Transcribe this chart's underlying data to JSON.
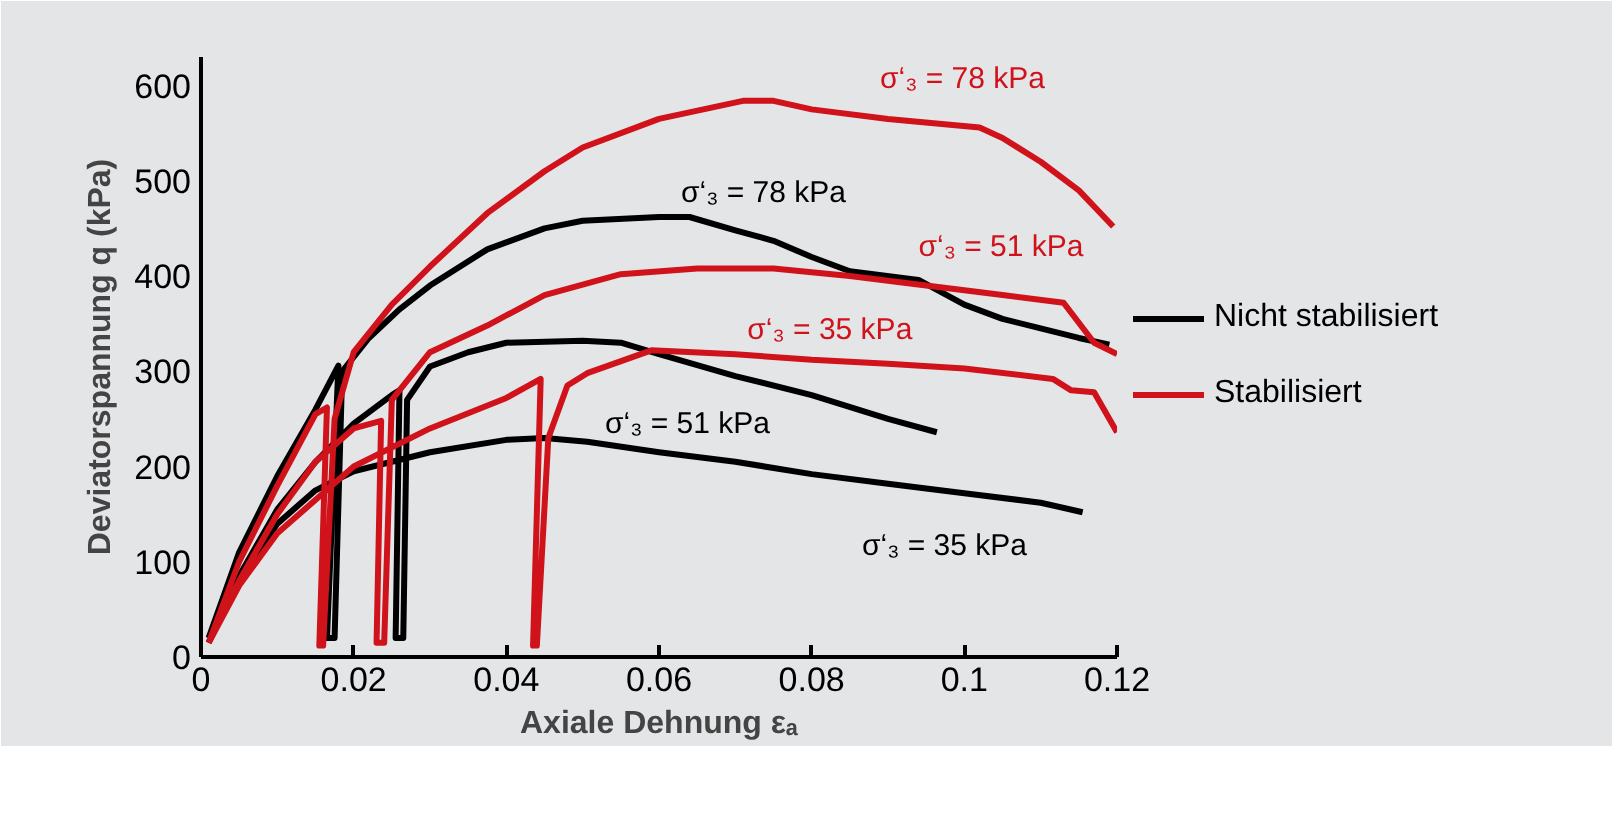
{
  "chart_data": {
    "type": "line",
    "xlabel": "Axiale Dehnung εₐ",
    "ylabel": "Deviatorspannung q (kPa)",
    "xlim": [
      0,
      0.12
    ],
    "ylim": [
      0,
      630
    ],
    "xticks": [
      0,
      0.02,
      0.04,
      0.06,
      0.08,
      0.1,
      0.12
    ],
    "yticks": [
      0,
      100,
      200,
      300,
      400,
      500,
      600
    ],
    "legend": "right",
    "series": [
      {
        "name": "Nicht stabilisiert",
        "color": "#000000",
        "x": [
          0.001,
          0.005,
          0.01,
          0.015,
          0.018,
          0.0165,
          0.0175,
          0.0185,
          0.022,
          0.026,
          0.03,
          0.0375,
          0.045,
          0.05,
          0.06,
          0.064,
          0.07,
          0.075,
          0.08,
          0.085,
          0.094,
          0.1,
          0.105,
          0.11,
          0.115,
          0.119,
          null,
          0.001,
          0.005,
          0.01,
          0.015,
          0.02,
          0.025,
          0.026,
          0.0255,
          0.0265,
          0.027,
          0.03,
          0.035,
          0.04,
          0.05,
          0.055,
          0.06,
          0.07,
          0.08,
          0.09,
          0.0964,
          null,
          0.001,
          0.005,
          0.01,
          0.015,
          0.02,
          0.03,
          0.04,
          0.045,
          0.0506,
          0.06,
          0.07,
          0.08,
          0.09,
          0.1,
          0.11,
          0.1155
        ],
        "values": [
          20,
          110,
          190,
          260,
          306,
          20,
          20,
          300,
          335,
          365,
          390,
          428,
          450,
          458,
          462,
          462,
          448,
          437,
          420,
          405,
          396,
          370,
          355,
          345,
          335,
          328,
          null,
          15,
          85,
          155,
          205,
          245,
          275,
          280,
          20,
          20,
          270,
          305,
          320,
          330,
          332,
          330,
          318,
          295,
          275,
          250,
          236,
          null,
          15,
          80,
          140,
          175,
          195,
          215,
          228,
          230,
          226,
          215,
          205,
          192,
          182,
          172,
          162,
          152
        ]
      },
      {
        "name": "Stabilisiert",
        "color": "#d0121b",
        "x": [
          0.001,
          0.005,
          0.01,
          0.015,
          0.0165,
          0.0155,
          0.016,
          0.0175,
          0.02,
          0.025,
          0.03,
          0.0375,
          0.045,
          0.05,
          0.06,
          0.071,
          0.075,
          0.08,
          0.09,
          0.102,
          0.105,
          0.11,
          0.115,
          0.1195,
          null,
          0.001,
          0.005,
          0.01,
          0.015,
          0.02,
          0.0236,
          0.023,
          0.024,
          0.025,
          0.03,
          0.0375,
          0.045,
          0.055,
          0.065,
          0.075,
          0.085,
          0.095,
          0.105,
          0.113,
          0.117,
          0.12,
          null,
          0.001,
          0.005,
          0.01,
          0.02,
          0.03,
          0.04,
          0.0445,
          0.0435,
          0.044,
          0.0455,
          0.048,
          0.0506,
          0.059,
          0.07,
          0.08,
          0.09,
          0.1,
          0.1116,
          0.114,
          0.117,
          0.12
        ],
        "values": [
          15,
          100,
          180,
          255,
          262,
          12,
          12,
          250,
          320,
          370,
          410,
          466,
          510,
          535,
          565,
          584,
          584,
          575,
          565,
          556,
          545,
          520,
          490,
          452,
          null,
          15,
          80,
          150,
          205,
          240,
          248,
          15,
          15,
          270,
          320,
          348,
          380,
          402,
          408,
          408,
          400,
          390,
          380,
          372,
          330,
          318,
          null,
          15,
          75,
          130,
          200,
          240,
          272,
          292,
          12,
          12,
          230,
          285,
          298,
          322,
          318,
          312,
          308,
          303,
          292,
          280,
          278,
          236
        ]
      }
    ],
    "annotations": [
      {
        "text": "σ‘₃ = 78 kPa",
        "x": 0.09,
        "y": 565
      },
      {
        "text": "σ‘₃ = 78 kPa",
        "x": 0.06,
        "y": 462
      },
      {
        "text": "σ‘₃ = 51 kPa",
        "x": 0.105,
        "y": 380
      },
      {
        "text": "σ‘₃ = 35 kPa",
        "x": 0.07,
        "y": 318
      },
      {
        "text": "σ‘₃ = 51 kPa",
        "x": 0.06,
        "y": 318
      },
      {
        "text": "σ‘₃ = 35 kPa",
        "x": 0.09,
        "y": 182
      }
    ]
  }
}
